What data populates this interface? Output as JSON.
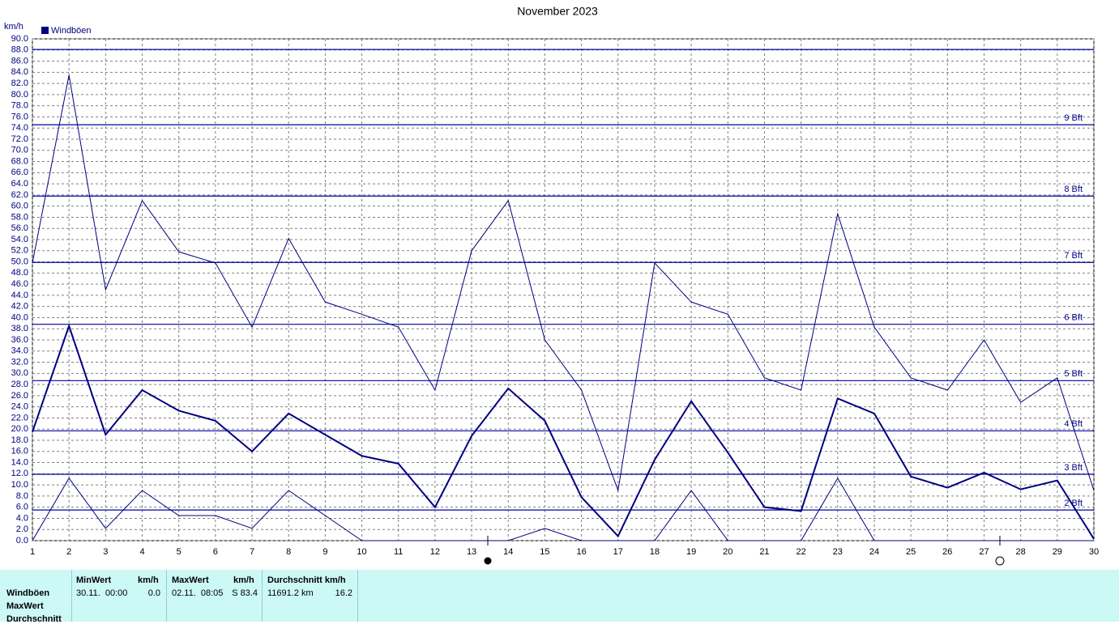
{
  "chart_data": {
    "type": "line",
    "title": "November 2023",
    "y_label": "km/h",
    "x": [
      1,
      2,
      3,
      4,
      5,
      6,
      7,
      8,
      9,
      10,
      11,
      12,
      13,
      14,
      15,
      16,
      17,
      18,
      19,
      20,
      21,
      22,
      23,
      24,
      25,
      26,
      27,
      28,
      29,
      30
    ],
    "xlim": [
      1,
      30
    ],
    "xticks": [
      1,
      2,
      3,
      4,
      5,
      6,
      7,
      8,
      9,
      10,
      11,
      12,
      13,
      14,
      15,
      16,
      17,
      18,
      19,
      20,
      21,
      22,
      23,
      24,
      25,
      26,
      27,
      28,
      29,
      30
    ],
    "ylim": [
      0,
      90
    ],
    "yticks": [
      {
        "value": 0,
        "label": "0.0"
      },
      {
        "value": 2,
        "label": "2.0"
      },
      {
        "value": 4,
        "label": "4.0"
      },
      {
        "value": 6,
        "label": "6.0"
      },
      {
        "value": 8,
        "label": "8.0"
      },
      {
        "value": 10,
        "label": "10.0"
      },
      {
        "value": 12,
        "label": "12.0"
      },
      {
        "value": 14,
        "label": "14.0"
      },
      {
        "value": 16,
        "label": "16.0"
      },
      {
        "value": 18,
        "label": "18.0"
      },
      {
        "value": 20,
        "label": "20.0"
      },
      {
        "value": 22,
        "label": "22.0"
      },
      {
        "value": 24,
        "label": "24.0"
      },
      {
        "value": 26,
        "label": "26.0"
      },
      {
        "value": 28,
        "label": "28.0"
      },
      {
        "value": 30,
        "label": "30.0"
      },
      {
        "value": 32,
        "label": "32.0"
      },
      {
        "value": 34,
        "label": "34.0"
      },
      {
        "value": 36,
        "label": "36.0"
      },
      {
        "value": 38,
        "label": "38.0"
      },
      {
        "value": 40,
        "label": "40.0"
      },
      {
        "value": 42,
        "label": "42.0"
      },
      {
        "value": 44,
        "label": "44.0"
      },
      {
        "value": 46,
        "label": "46.0"
      },
      {
        "value": 48,
        "label": "48.0"
      },
      {
        "value": 50,
        "label": "50.0"
      },
      {
        "value": 52,
        "label": "52.0"
      },
      {
        "value": 54,
        "label": "54.0"
      },
      {
        "value": 56,
        "label": "56.0"
      },
      {
        "value": 58,
        "label": "58.0"
      },
      {
        "value": 60,
        "label": "60.0"
      },
      {
        "value": 62,
        "label": "62.0"
      },
      {
        "value": 64,
        "label": "64.0"
      },
      {
        "value": 66,
        "label": "66.0"
      },
      {
        "value": 68,
        "label": "68.0"
      },
      {
        "value": 70,
        "label": "70.0"
      },
      {
        "value": 72,
        "label": "72.0"
      },
      {
        "value": 74,
        "label": "74.0"
      },
      {
        "value": 76,
        "label": "76.0"
      },
      {
        "value": 78,
        "label": "78.0"
      },
      {
        "value": 80,
        "label": "80.0"
      },
      {
        "value": 82,
        "label": "82.0"
      },
      {
        "value": 84,
        "label": "84.0"
      },
      {
        "value": 86,
        "label": "86.0"
      },
      {
        "value": 88,
        "label": "88.0"
      },
      {
        "value": 90,
        "label": "90.0"
      }
    ],
    "grid": true,
    "series": [
      {
        "name": "Windböen",
        "color": "#000080",
        "values": [
          19.5,
          38.5,
          19,
          27,
          23.3,
          21.5,
          16,
          22.8,
          19,
          15.2,
          13.8,
          6,
          18.8,
          27.3,
          21.5,
          7.8,
          0.8,
          14.5,
          25,
          15.8,
          6,
          5.3,
          25.5,
          22.8,
          11.5,
          9.5,
          12.2,
          9.2,
          10.8,
          0.3
        ]
      },
      {
        "color": "#000080",
        "values": [
          49.8,
          83.5,
          45,
          61,
          51.8,
          49.8,
          38.3,
          54.2,
          42.8,
          40.6,
          38.3,
          27,
          52,
          61,
          36,
          27,
          9,
          49.8,
          42.8,
          40.6,
          29.2,
          27,
          58.6,
          38.3,
          29.2,
          27,
          36,
          24.8,
          29.2,
          9
        ]
      },
      {
        "color": "#000080",
        "values": [
          0,
          11.2,
          2.2,
          9,
          4.5,
          4.5,
          2.2,
          9,
          4.5,
          0,
          0,
          0,
          0,
          0,
          2.2,
          0,
          0,
          0,
          9,
          0,
          0,
          0,
          11.2,
          0,
          0,
          0,
          0,
          0,
          0,
          0
        ]
      }
    ],
    "reference_lines": [
      {
        "value": 5.5,
        "label": "2 Bft"
      },
      {
        "value": 11.9,
        "label": "3 Bft"
      },
      {
        "value": 19.7,
        "label": "4 Bft"
      },
      {
        "value": 28.7,
        "label": "5 Bft"
      },
      {
        "value": 38.8,
        "label": "6 Bft"
      },
      {
        "value": 49.9,
        "label": "7 Bft"
      },
      {
        "value": 61.8,
        "label": "8 Bft"
      },
      {
        "value": 74.6,
        "label": "9 Bft"
      },
      {
        "value": 88.1
      }
    ]
  },
  "table": {
    "headers": [
      "MinWert",
      "km/h",
      "MaxWert",
      "km/h",
      "Durchschnitt km/h"
    ],
    "row_labels": [
      "Windböen",
      "MaxWert",
      "Durchschnitt"
    ],
    "rows": [
      [
        "30.11.  00:00",
        "0.0",
        "02.11.  08:05",
        "S 83.4",
        "11691.2 km",
        "16.2"
      ]
    ]
  }
}
